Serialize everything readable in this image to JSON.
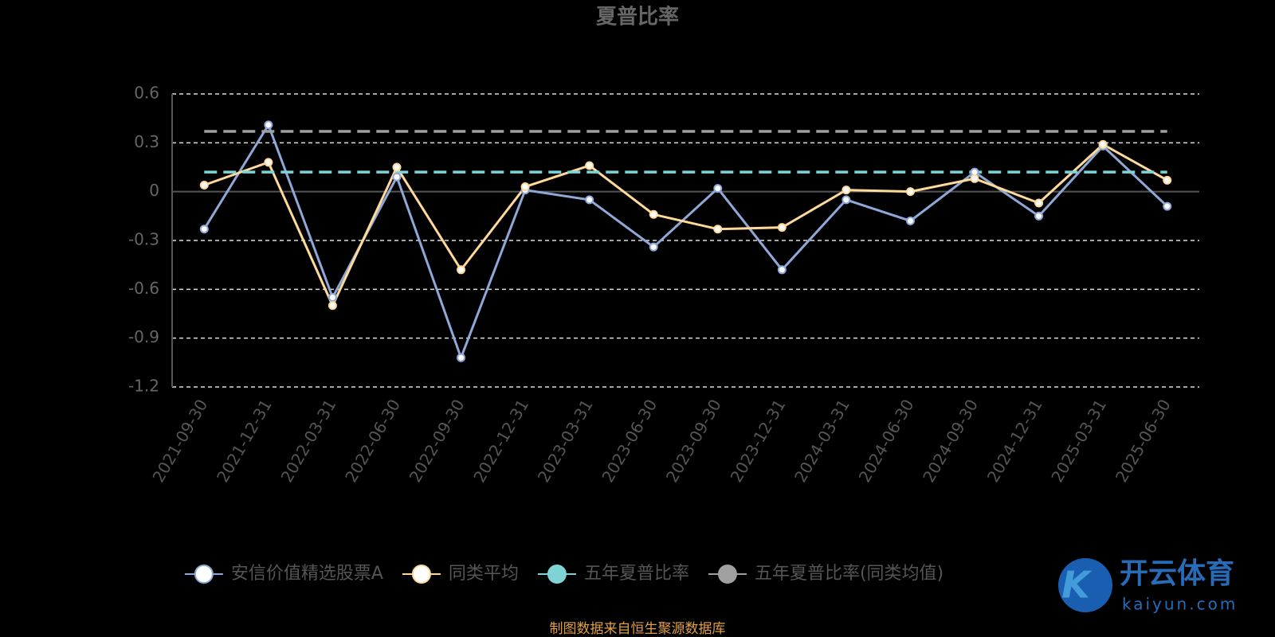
{
  "chart_data": {
    "type": "line",
    "title": "夏普比率",
    "categories": [
      "2021-09-30",
      "2021-12-31",
      "2022-03-31",
      "2022-06-30",
      "2022-09-30",
      "2022-12-31",
      "2023-03-31",
      "2023-06-30",
      "2023-09-30",
      "2023-12-31",
      "2024-03-31",
      "2024-06-30",
      "2024-09-30",
      "2024-12-31",
      "2025-03-31",
      "2025-06-30"
    ],
    "series": [
      {
        "name": "安信价值精选股票A",
        "color": "#8fa8d8",
        "values": [
          -0.23,
          0.41,
          -0.65,
          0.09,
          -1.02,
          0.01,
          -0.05,
          -0.34,
          0.02,
          -0.48,
          -0.05,
          -0.18,
          0.12,
          -0.15,
          0.28,
          -0.09
        ]
      },
      {
        "name": "同类平均",
        "color": "#ffd99a",
        "values": [
          0.04,
          0.18,
          -0.7,
          0.15,
          -0.48,
          0.03,
          0.16,
          -0.14,
          -0.23,
          -0.22,
          0.01,
          0.0,
          0.08,
          -0.07,
          0.29,
          0.07
        ]
      },
      {
        "name": "五年夏普比率",
        "color": "#7fd3d6",
        "dashed": true,
        "values": [
          0.12,
          0.12,
          0.12,
          0.12,
          0.12,
          0.12,
          0.12,
          0.12,
          0.12,
          0.12,
          0.12,
          0.12,
          0.12,
          0.12,
          0.12,
          0.12
        ]
      },
      {
        "name": "五年夏普比率(同类均值)",
        "color": "#a0a0a0",
        "dashed": true,
        "values": [
          0.37,
          0.37,
          0.37,
          0.37,
          0.37,
          0.37,
          0.37,
          0.37,
          0.37,
          0.37,
          0.37,
          0.37,
          0.37,
          0.37,
          0.37,
          0.37
        ]
      }
    ],
    "ylim": [
      -1.2,
      0.6
    ],
    "yticks": [
      -1.2,
      -0.9,
      -0.6,
      -0.3,
      0,
      0.3,
      0.6
    ],
    "grid": true,
    "source": "制图数据来自恒生聚源数据库"
  },
  "watermark": {
    "title": "开云体育",
    "subtitle": "kaiyun.com"
  }
}
